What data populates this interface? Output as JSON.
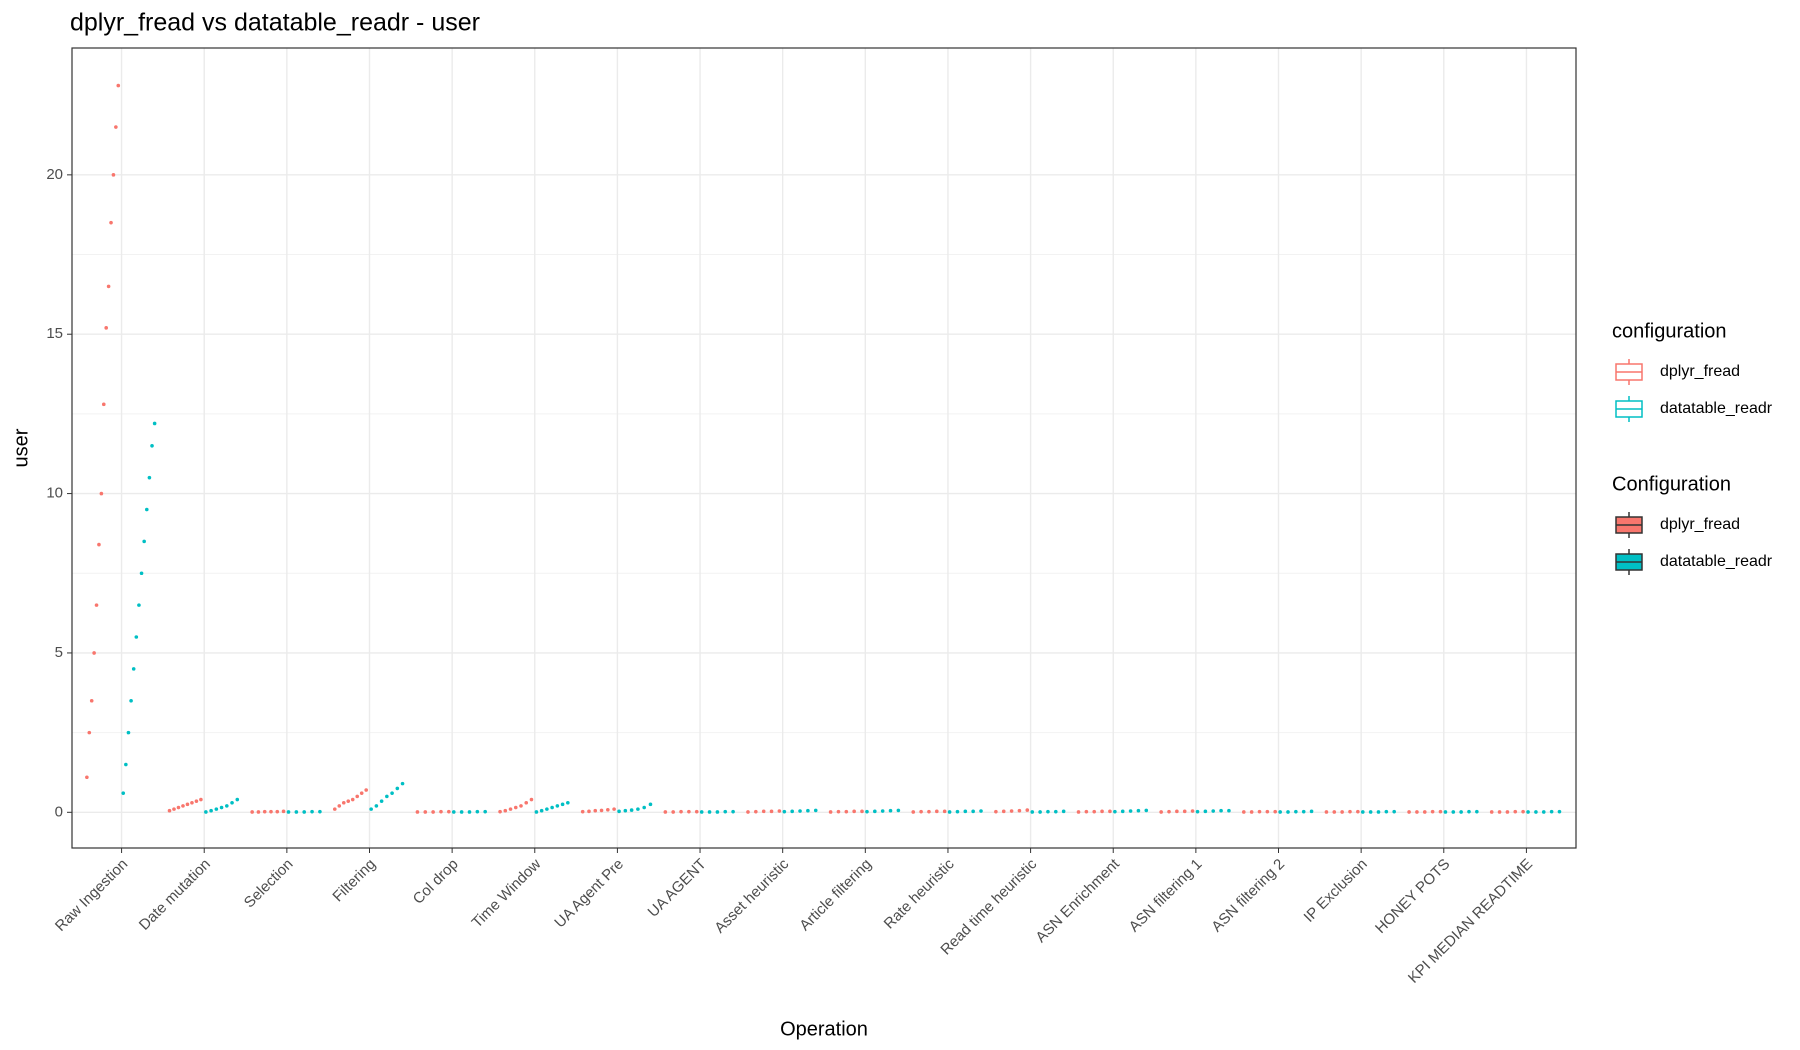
{
  "chart_data": {
    "type": "strip",
    "title": "dplyr_fread vs datatable_readr - user",
    "x_label": "Operation",
    "y_label": "user",
    "legend_titles": [
      "configuration",
      "Configuration"
    ],
    "categories": [
      "Raw Ingestion",
      "Date mutation",
      "Selection",
      "Filtering",
      "Col drop",
      "Time Window",
      "UA Agent Pre",
      "UA AGENT",
      "Asset heuristic",
      "Article filtering",
      "Rate heuristic",
      "Read time heuristic",
      "ASN Enrichment",
      "ASN filtering 1",
      "ASN filtering 2",
      "IP Exclusion",
      "HONEY POTS",
      "KPI MEDIAN READTIME"
    ],
    "series": [
      {
        "name": "dplyr_fread",
        "color": "#F8766D",
        "values": [
          [
            1.1,
            2.5,
            3.5,
            5,
            6.5,
            8.4,
            10,
            12.8,
            15.2,
            16.5,
            18.5,
            20,
            21.5,
            22.8
          ],
          [
            0.05,
            0.1,
            0.15,
            0.2,
            0.25,
            0.3,
            0.35,
            0.4
          ],
          [
            0.01,
            0.01,
            0.02,
            0.02,
            0.02,
            0.03
          ],
          [
            0.1,
            0.2,
            0.3,
            0.35,
            0.4,
            0.5,
            0.6,
            0.7
          ],
          [
            0.01,
            0.01,
            0.01,
            0.02,
            0.02
          ],
          [
            0.02,
            0.05,
            0.1,
            0.15,
            0.2,
            0.3,
            0.4
          ],
          [
            0.02,
            0.03,
            0.05,
            0.06,
            0.08,
            0.1
          ],
          [
            0.01,
            0.01,
            0.02,
            0.02,
            0.02
          ],
          [
            0.01,
            0.02,
            0.03,
            0.03,
            0.04
          ],
          [
            0.01,
            0.02,
            0.02,
            0.03,
            0.03
          ],
          [
            0.01,
            0.02,
            0.02,
            0.03,
            0.03
          ],
          [
            0.02,
            0.03,
            0.04,
            0.05,
            0.07
          ],
          [
            0.01,
            0.02,
            0.02,
            0.03,
            0.03
          ],
          [
            0.01,
            0.02,
            0.03,
            0.03,
            0.04
          ],
          [
            0.01,
            0.01,
            0.02,
            0.02,
            0.02
          ],
          [
            0.01,
            0.01,
            0.01,
            0.02,
            0.02
          ],
          [
            0.01,
            0.01,
            0.01,
            0.02,
            0.02
          ],
          [
            0.01,
            0.01,
            0.01,
            0.02,
            0.02
          ]
        ]
      },
      {
        "name": "datatable_readr",
        "color": "#00BFC4",
        "values": [
          [
            0.6,
            1.5,
            2.5,
            3.5,
            4.5,
            5.5,
            6.5,
            7.5,
            8.5,
            9.5,
            10.5,
            11.5,
            12.2
          ],
          [
            0.01,
            0.05,
            0.1,
            0.15,
            0.2,
            0.3,
            0.4
          ],
          [
            0.01,
            0.01,
            0.01,
            0.02,
            0.02
          ],
          [
            0.1,
            0.2,
            0.35,
            0.5,
            0.6,
            0.75,
            0.9
          ],
          [
            0.01,
            0.01,
            0.01,
            0.02,
            0.02
          ],
          [
            0.01,
            0.05,
            0.1,
            0.15,
            0.2,
            0.25,
            0.3
          ],
          [
            0.03,
            0.05,
            0.07,
            0.1,
            0.15,
            0.25
          ],
          [
            0.01,
            0.01,
            0.01,
            0.02,
            0.02
          ],
          [
            0.02,
            0.03,
            0.04,
            0.05,
            0.06
          ],
          [
            0.02,
            0.03,
            0.04,
            0.05,
            0.06
          ],
          [
            0.01,
            0.02,
            0.03,
            0.03,
            0.04
          ],
          [
            0.01,
            0.01,
            0.02,
            0.02,
            0.03
          ],
          [
            0.02,
            0.03,
            0.04,
            0.05,
            0.06
          ],
          [
            0.02,
            0.03,
            0.04,
            0.05,
            0.05
          ],
          [
            0.01,
            0.01,
            0.02,
            0.02,
            0.03
          ],
          [
            0.01,
            0.01,
            0.01,
            0.02,
            0.02
          ],
          [
            0.01,
            0.01,
            0.01,
            0.02,
            0.02
          ],
          [
            0.01,
            0.01,
            0.01,
            0.02,
            0.02
          ]
        ]
      }
    ],
    "ylim": [
      -1.12,
      23.98
    ],
    "yticks": [
      0,
      5,
      10,
      15,
      20
    ],
    "grid": true
  }
}
